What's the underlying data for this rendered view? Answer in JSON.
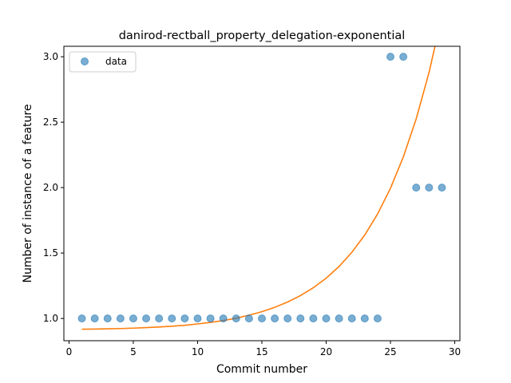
{
  "chart_data": {
    "type": "scatter",
    "title": "danirod-rectball_property_delegation-exponential",
    "xlabel": "Commit number",
    "ylabel": "Number of instance of a feature",
    "xlim": [
      -0.4,
      30.4
    ],
    "ylim": [
      0.83,
      3.08
    ],
    "xticks": [
      0,
      5,
      10,
      15,
      20,
      25,
      30
    ],
    "xtick_labels": [
      "0",
      "5",
      "10",
      "15",
      "20",
      "25",
      "30"
    ],
    "yticks": [
      1.0,
      1.5,
      2.0,
      2.5,
      3.0
    ],
    "ytick_labels": [
      "1.0",
      "1.5",
      "2.0",
      "2.5",
      "3.0"
    ],
    "grid": false,
    "legend": {
      "position": "upper-left",
      "entries": [
        "data"
      ]
    },
    "series": [
      {
        "name": "data",
        "kind": "scatter",
        "color": "#1f77b4",
        "x": [
          1,
          2,
          3,
          4,
          5,
          6,
          7,
          8,
          9,
          10,
          11,
          12,
          13,
          14,
          15,
          16,
          17,
          18,
          19,
          20,
          21,
          22,
          23,
          24,
          25,
          26,
          27,
          28,
          29
        ],
        "y": [
          1,
          1,
          1,
          1,
          1,
          1,
          1,
          1,
          1,
          1,
          1,
          1,
          1,
          1,
          1,
          1,
          1,
          1,
          1,
          1,
          1,
          1,
          1,
          1,
          3,
          3,
          2,
          2,
          2
        ]
      },
      {
        "kind": "line",
        "color": "#ff7f0e",
        "x": [
          1,
          2,
          3,
          4,
          5,
          6,
          7,
          8,
          9,
          10,
          11,
          12,
          13,
          14,
          15,
          16,
          17,
          18,
          19,
          20,
          21,
          22,
          23,
          24,
          25,
          26,
          27,
          28,
          29
        ],
        "y": [
          0.918,
          0.919,
          0.921,
          0.923,
          0.926,
          0.93,
          0.935,
          0.941,
          0.948,
          0.958,
          0.97,
          0.984,
          1.002,
          1.025,
          1.052,
          1.085,
          1.126,
          1.175,
          1.235,
          1.308,
          1.397,
          1.506,
          1.638,
          1.799,
          1.995,
          2.234,
          2.525,
          2.88,
          3.312
        ]
      }
    ]
  }
}
